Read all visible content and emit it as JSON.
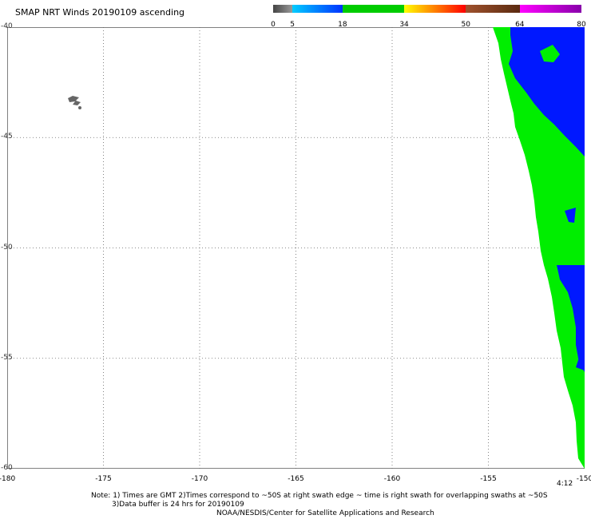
{
  "title": "SMAP NRT Winds 20190109 ascending",
  "colorbar": {
    "labels": [
      "0",
      "5",
      "18",
      "34",
      "50",
      "64",
      "80"
    ],
    "segments": [
      {
        "from": 0,
        "to": 5,
        "color": "#5a5a5a"
      },
      {
        "from": 5,
        "to": 18,
        "color": "#0070ff"
      },
      {
        "from": 18,
        "to": 34,
        "color": "#00cc00"
      },
      {
        "from": 34,
        "to": 50,
        "color": "#ff6600"
      },
      {
        "from": 50,
        "to": 64,
        "color": "#8b4a2a"
      },
      {
        "from": 64,
        "to": 80,
        "color": "#cc00cc"
      }
    ]
  },
  "map": {
    "lon_range": [
      -180,
      -150
    ],
    "lat_range": [
      -40,
      -60
    ],
    "lon_ticks": [
      "-180",
      "-175",
      "-170",
      "-165",
      "-160",
      "-155",
      "-150"
    ],
    "lat_ticks": [
      "-40",
      "-45",
      "-50",
      "-55",
      "-60"
    ],
    "grid": true,
    "swath_colors": {
      "low": "#0018ff",
      "mid": "#00ee00"
    }
  },
  "time_label": "4:12",
  "notes": {
    "line1": "Note: 1) Times are GMT 2)Times correspond to ~50S at right swath edge ~ time is right swath for overlapping swaths at ~50S",
    "line2": "3)Data buffer is 24 hrs for 20190109",
    "line3": "NOAA/NESDIS/Center for Satellite Applications and Research"
  }
}
